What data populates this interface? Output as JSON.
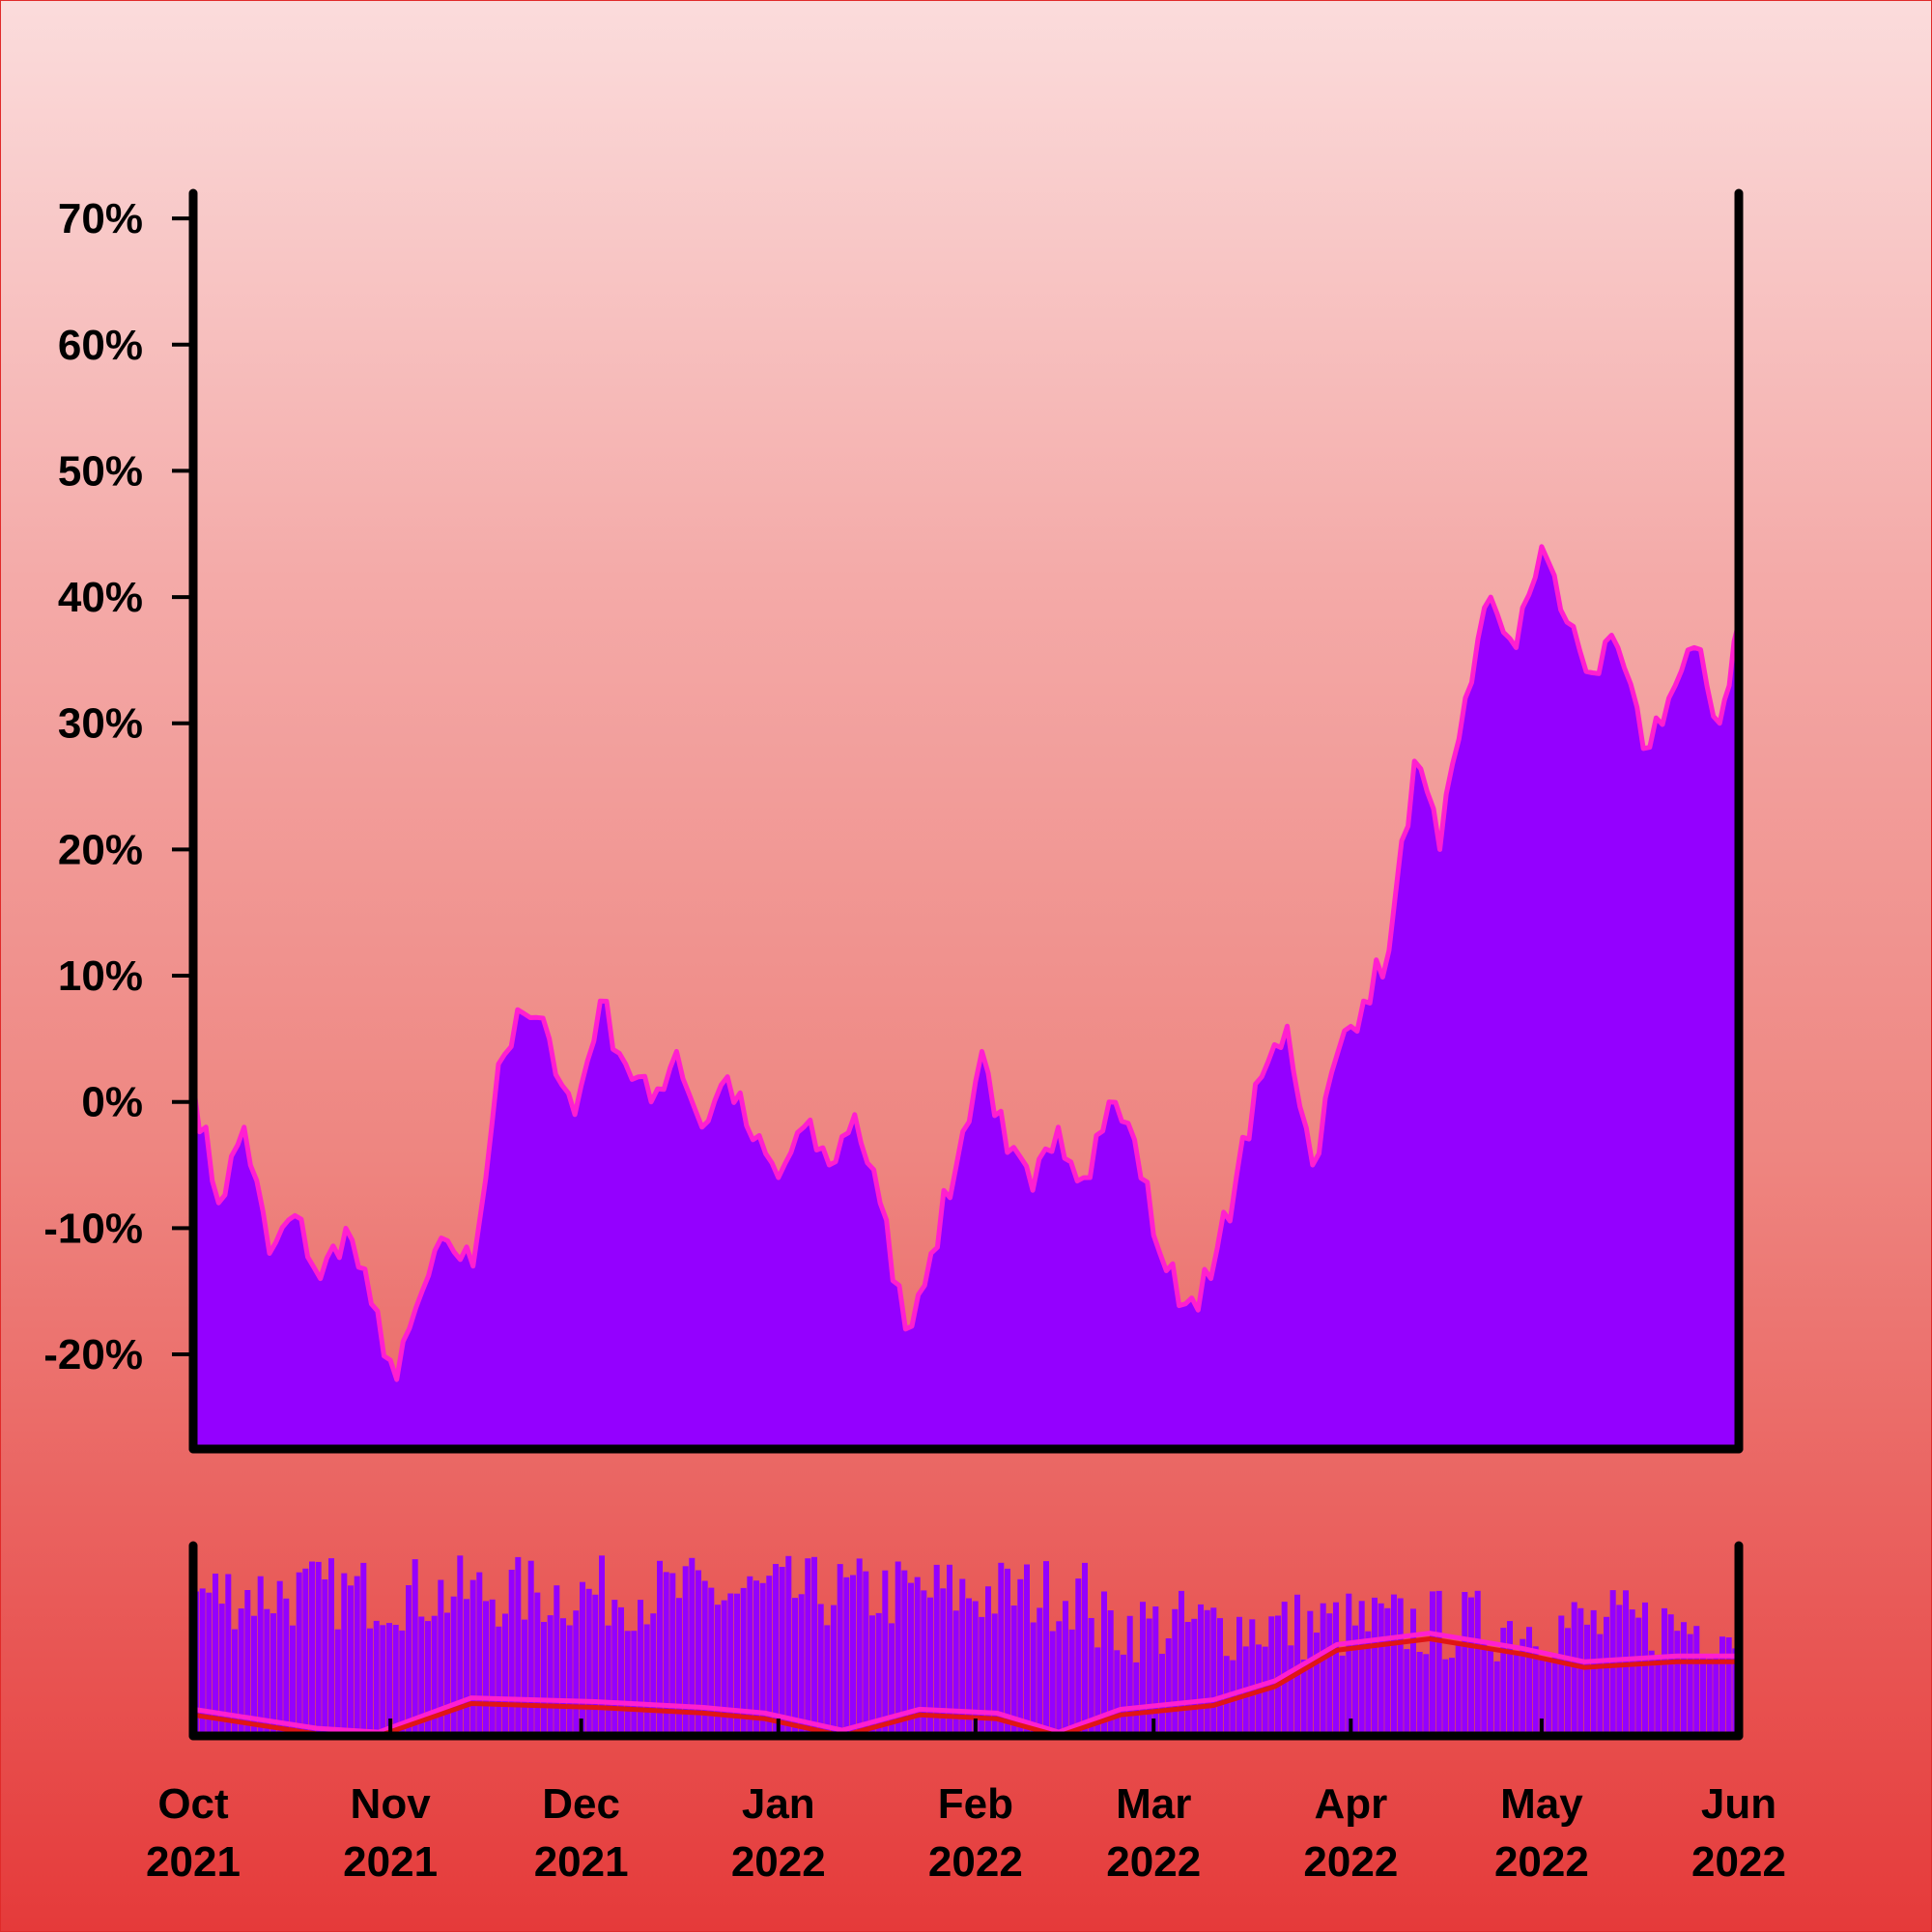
{
  "chart_data": [
    {
      "type": "area",
      "title": "",
      "xlabel": "",
      "ylabel": "",
      "ylim": [
        -27.5,
        72
      ],
      "yticks": [
        -20,
        -10,
        0,
        10,
        20,
        30,
        40,
        50,
        60,
        70
      ],
      "ytick_labels": [
        "-20%",
        "-10%",
        "0%",
        "10%",
        "20%",
        "30%",
        "40%",
        "50%",
        "60%",
        "70%"
      ],
      "x_range": [
        "2021-10-01",
        "2022-06-01"
      ],
      "grid": false,
      "fill_color": "#9400ff",
      "line_color": "#ff1fd0",
      "series": [
        {
          "x": [
            "2021-10-01",
            "2021-10-05",
            "2021-10-09",
            "2021-10-13",
            "2021-10-17",
            "2021-10-21",
            "2021-10-25",
            "2021-10-29",
            "2021-11-02",
            "2021-11-06",
            "2021-11-10",
            "2021-11-14",
            "2021-11-18",
            "2021-11-22",
            "2021-11-26",
            "2021-11-30",
            "2021-12-04",
            "2021-12-08",
            "2021-12-12",
            "2021-12-16",
            "2021-12-20",
            "2021-12-24",
            "2021-12-28",
            "2022-01-01",
            "2022-01-05",
            "2022-01-09",
            "2022-01-13",
            "2022-01-17",
            "2022-01-21",
            "2022-01-25",
            "2022-01-29",
            "2022-02-02",
            "2022-02-06",
            "2022-02-10",
            "2022-02-14",
            "2022-02-18",
            "2022-02-22",
            "2022-02-26",
            "2022-03-02",
            "2022-03-06",
            "2022-03-10",
            "2022-03-14",
            "2022-03-18",
            "2022-03-22",
            "2022-03-26",
            "2022-03-30",
            "2022-04-03",
            "2022-04-07",
            "2022-04-11",
            "2022-04-15",
            "2022-04-19",
            "2022-04-23",
            "2022-04-27",
            "2022-05-01",
            "2022-05-05",
            "2022-05-09",
            "2022-05-13",
            "2022-05-17",
            "2022-05-21",
            "2022-05-25",
            "2022-05-29",
            "2022-06-01"
          ],
          "values": [
            1.5,
            -8,
            -2,
            -12,
            -9,
            -14,
            -10,
            -16,
            -22,
            -15,
            -11,
            -13,
            3,
            7,
            5,
            -1,
            8,
            3,
            0,
            4,
            -2,
            2,
            -3,
            -6,
            -2,
            -5,
            -1,
            -8,
            -18,
            -12,
            -5,
            4,
            -4,
            -7,
            -2,
            -6,
            0,
            -3,
            -12,
            -16,
            -14,
            -6,
            2,
            6,
            -5,
            4,
            8,
            12,
            27,
            20,
            32,
            40,
            36,
            44,
            38,
            34,
            36,
            28,
            32,
            36,
            30,
            38
          ]
        }
      ]
    },
    {
      "type": "bar",
      "title": "",
      "x_range": [
        "2021-10-01",
        "2022-06-01"
      ],
      "xtick_labels": [
        "Oct\n2021",
        "Nov\n2021",
        "Dec\n2021",
        "Jan\n2022",
        "Feb\n2022",
        "Mar\n2022",
        "Apr\n2022",
        "May\n2022",
        "Jun\n2022"
      ],
      "bar_color": "#9400ff",
      "line_colors": [
        "#ff1fd0",
        "#e01515"
      ]
    }
  ]
}
